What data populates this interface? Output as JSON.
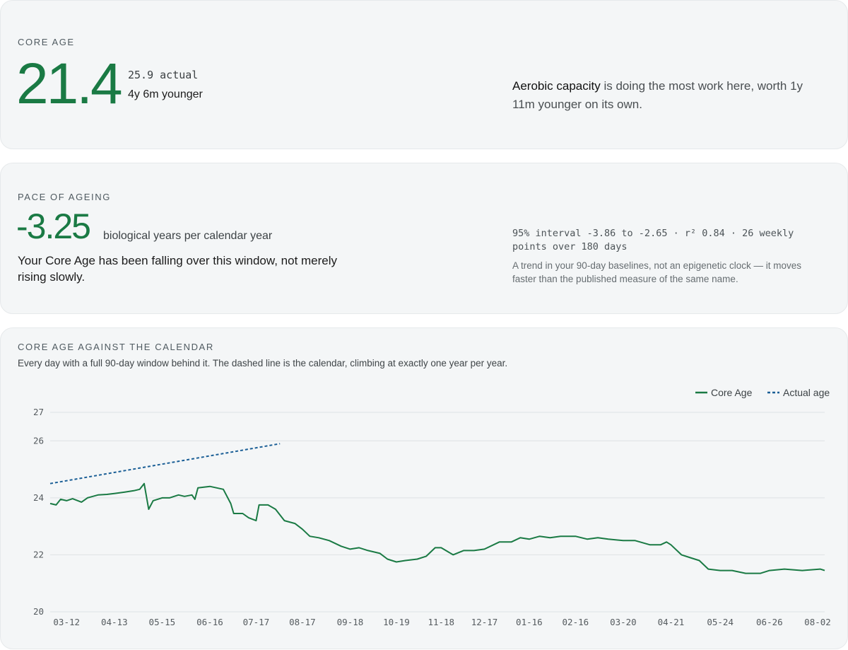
{
  "core": {
    "label": "CORE AGE",
    "value": "21.4",
    "actual": "25.9 actual",
    "diff": "4y 6m younger",
    "insight_strong": "Aerobic capacity",
    "insight_rest": " is doing the most work here, worth 1y 11m younger on its own."
  },
  "pace": {
    "label": "PACE OF AGEING",
    "value": "-3.25",
    "unit": "biological years per calendar year",
    "desc": "Your Core Age has been falling over this window, not merely rising slowly.",
    "stats": "95% interval -3.86 to -2.65 · r² 0.84 · 26 weekly points over 180 days",
    "note": "A trend in your 90-day baselines, not an epigenetic clock — it moves faster than the published measure of the same name."
  },
  "calendar": {
    "label": "CORE AGE AGAINST THE CALENDAR",
    "subtitle": "Every day with a full 90-day window behind it. The dashed line is the calendar, climbing at exactly one year per year."
  },
  "colors": {
    "green": "#1a7a44",
    "blue": "#1b5f96"
  },
  "chart_data": {
    "type": "line",
    "x_ticks": [
      "03-12",
      "04-13",
      "05-15",
      "06-16",
      "07-17",
      "08-17",
      "09-18",
      "10-19",
      "11-18",
      "12-17",
      "01-16",
      "02-16",
      "03-20",
      "04-21",
      "05-24",
      "06-26",
      "08-02"
    ],
    "y_ticks": [
      "20",
      "22",
      "24",
      "26",
      "27"
    ],
    "ylim": [
      20,
      27
    ],
    "legend_position": "top-right",
    "grid": true,
    "series": [
      {
        "name": "Core Age",
        "color": "#1a7a44",
        "style": "solid",
        "points": [
          [
            "03-01",
            23.8
          ],
          [
            "03-05",
            23.75
          ],
          [
            "03-08",
            23.95
          ],
          [
            "03-12",
            23.9
          ],
          [
            "03-16",
            23.97
          ],
          [
            "03-22",
            23.85
          ],
          [
            "03-26",
            24.0
          ],
          [
            "04-02",
            24.1
          ],
          [
            "04-08",
            24.12
          ],
          [
            "04-13",
            24.15
          ],
          [
            "04-20",
            24.2
          ],
          [
            "04-26",
            24.25
          ],
          [
            "04-30",
            24.3
          ],
          [
            "05-03",
            24.5
          ],
          [
            "05-06",
            23.6
          ],
          [
            "05-09",
            23.9
          ],
          [
            "05-15",
            24.0
          ],
          [
            "05-20",
            24.0
          ],
          [
            "05-26",
            24.1
          ],
          [
            "05-30",
            24.05
          ],
          [
            "06-04",
            24.1
          ],
          [
            "06-06",
            23.95
          ],
          [
            "06-08",
            24.35
          ],
          [
            "06-16",
            24.4
          ],
          [
            "06-25",
            24.3
          ],
          [
            "06-30",
            23.8
          ],
          [
            "07-02",
            23.45
          ],
          [
            "07-08",
            23.45
          ],
          [
            "07-12",
            23.3
          ],
          [
            "07-17",
            23.2
          ],
          [
            "07-19",
            23.75
          ],
          [
            "07-25",
            23.75
          ],
          [
            "07-30",
            23.6
          ],
          [
            "08-05",
            23.2
          ],
          [
            "08-12",
            23.1
          ],
          [
            "08-17",
            22.9
          ],
          [
            "08-22",
            22.65
          ],
          [
            "08-28",
            22.6
          ],
          [
            "09-04",
            22.5
          ],
          [
            "09-12",
            22.3
          ],
          [
            "09-18",
            22.2
          ],
          [
            "09-24",
            22.25
          ],
          [
            "09-30",
            22.15
          ],
          [
            "10-08",
            22.05
          ],
          [
            "10-13",
            21.85
          ],
          [
            "10-19",
            21.75
          ],
          [
            "10-25",
            21.8
          ],
          [
            "11-02",
            21.85
          ],
          [
            "11-08",
            21.95
          ],
          [
            "11-14",
            22.25
          ],
          [
            "11-18",
            22.25
          ],
          [
            "11-26",
            22.0
          ],
          [
            "12-03",
            22.15
          ],
          [
            "12-10",
            22.15
          ],
          [
            "12-17",
            22.2
          ],
          [
            "12-27",
            22.45
          ],
          [
            "01-04",
            22.45
          ],
          [
            "01-10",
            22.6
          ],
          [
            "01-16",
            22.55
          ],
          [
            "01-23",
            22.65
          ],
          [
            "01-30",
            22.6
          ],
          [
            "02-06",
            22.65
          ],
          [
            "02-16",
            22.65
          ],
          [
            "02-24",
            22.55
          ],
          [
            "03-03",
            22.6
          ],
          [
            "03-10",
            22.55
          ],
          [
            "03-20",
            22.5
          ],
          [
            "03-28",
            22.5
          ],
          [
            "04-07",
            22.35
          ],
          [
            "04-14",
            22.35
          ],
          [
            "04-18",
            22.45
          ],
          [
            "04-21",
            22.35
          ],
          [
            "04-28",
            22.0
          ],
          [
            "05-04",
            21.9
          ],
          [
            "05-10",
            21.8
          ],
          [
            "05-16",
            21.5
          ],
          [
            "05-24",
            21.45
          ],
          [
            "06-01",
            21.45
          ],
          [
            "06-10",
            21.35
          ],
          [
            "06-20",
            21.35
          ],
          [
            "06-26",
            21.45
          ],
          [
            "07-06",
            21.5
          ],
          [
            "07-18",
            21.45
          ],
          [
            "07-30",
            21.5
          ],
          [
            "08-02",
            21.45
          ]
        ]
      },
      {
        "name": "Actual age",
        "color": "#1b5f96",
        "style": "dashed",
        "points": [
          [
            "03-01",
            24.5
          ],
          [
            "08-02",
            25.9
          ]
        ]
      }
    ]
  }
}
